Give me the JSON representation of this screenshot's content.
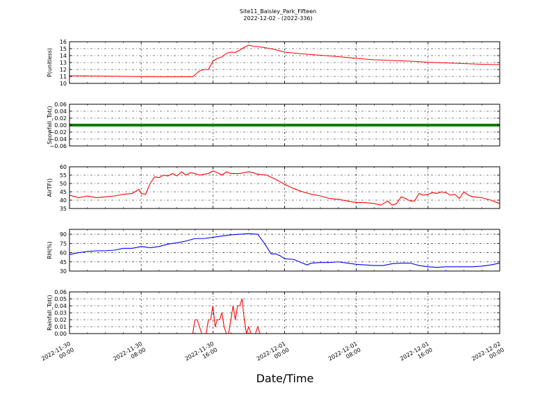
{
  "figure": {
    "title_line1": "Site11_Baisley_Park_Fifteen",
    "title_line2": "2022-12-02 - (2022-336)",
    "xlabel": "Date/Time"
  },
  "chart_data": {
    "type": "line",
    "x_range": [
      "2022-11-30 00:00",
      "2022-12-02 00:00"
    ],
    "x_ticks": [
      {
        "time": "2022-11-30 00:00",
        "line1": "2022-11-30",
        "line2": "00:00"
      },
      {
        "time": "2022-11-30 08:00",
        "line1": "2022-11-30",
        "line2": "08:00"
      },
      {
        "time": "2022-11-30 16:00",
        "line1": "2022-11-30",
        "line2": "16:00"
      },
      {
        "time": "2022-12-01 00:00",
        "line1": "2022-12-01",
        "line2": "00:00"
      },
      {
        "time": "2022-12-01 08:00",
        "line1": "2022-12-01",
        "line2": "08:00"
      },
      {
        "time": "2022-12-01 16:00",
        "line1": "2022-12-01",
        "line2": "16:00"
      },
      {
        "time": "2022-12-02 00:00",
        "line1": "2022-12-02",
        "line2": "00:00"
      }
    ],
    "grid": true,
    "panels": [
      {
        "id": "pressure",
        "ylabel": "P(unitless)",
        "color": "#ff0000",
        "ylim": [
          10,
          16
        ],
        "yticks": [
          "10",
          "11",
          "12",
          "13",
          "14",
          "15",
          "16"
        ],
        "series": [
          {
            "t": "2022-11-30 00:00",
            "v": 11.1
          },
          {
            "t": "2022-11-30 04:00",
            "v": 11.05
          },
          {
            "t": "2022-11-30 08:00",
            "v": 10.98
          },
          {
            "t": "2022-11-30 12:00",
            "v": 10.95
          },
          {
            "t": "2022-11-30 13:45",
            "v": 10.95
          },
          {
            "t": "2022-11-30 14:30",
            "v": 11.8
          },
          {
            "t": "2022-11-30 15:00",
            "v": 12.0
          },
          {
            "t": "2022-11-30 15:30",
            "v": 12.0
          },
          {
            "t": "2022-11-30 16:00",
            "v": 13.2
          },
          {
            "t": "2022-11-30 16:30",
            "v": 13.6
          },
          {
            "t": "2022-11-30 17:00",
            "v": 13.8
          },
          {
            "t": "2022-11-30 17:30",
            "v": 14.3
          },
          {
            "t": "2022-11-30 18:00",
            "v": 14.5
          },
          {
            "t": "2022-11-30 18:30",
            "v": 14.45
          },
          {
            "t": "2022-11-30 19:00",
            "v": 14.8
          },
          {
            "t": "2022-11-30 19:30",
            "v": 15.2
          },
          {
            "t": "2022-11-30 20:00",
            "v": 15.5
          },
          {
            "t": "2022-11-30 20:30",
            "v": 15.35
          },
          {
            "t": "2022-11-30 21:00",
            "v": 15.3
          },
          {
            "t": "2022-11-30 22:00",
            "v": 15.1
          },
          {
            "t": "2022-11-30 23:00",
            "v": 14.85
          },
          {
            "t": "2022-12-01 00:00",
            "v": 14.5
          },
          {
            "t": "2022-12-01 02:00",
            "v": 14.25
          },
          {
            "t": "2022-12-01 04:00",
            "v": 14.05
          },
          {
            "t": "2022-12-01 06:00",
            "v": 13.85
          },
          {
            "t": "2022-12-01 08:00",
            "v": 13.6
          },
          {
            "t": "2022-12-01 10:00",
            "v": 13.4
          },
          {
            "t": "2022-12-01 12:00",
            "v": 13.3
          },
          {
            "t": "2022-12-01 14:00",
            "v": 13.2
          },
          {
            "t": "2022-12-01 16:00",
            "v": 13.05
          },
          {
            "t": "2022-12-01 18:00",
            "v": 12.95
          },
          {
            "t": "2022-12-01 20:00",
            "v": 12.85
          },
          {
            "t": "2022-12-01 22:00",
            "v": 12.75
          },
          {
            "t": "2022-12-02 00:00",
            "v": 12.7
          }
        ]
      },
      {
        "id": "snowfall",
        "ylabel": "Snowfall_Tot()",
        "color": "#008000",
        "ylim": [
          -0.06,
          0.06
        ],
        "yticks": [
          "−0.06",
          "−0.04",
          "−0.02",
          "0.00",
          "0.02",
          "0.04",
          "0.06"
        ],
        "thick": true,
        "series": [
          {
            "t": "2022-11-30 00:00",
            "v": 0
          },
          {
            "t": "2022-12-02 00:00",
            "v": 0
          }
        ]
      },
      {
        "id": "airtemp",
        "ylabel": "AirTF()",
        "color": "#ff0000",
        "ylim": [
          35,
          60
        ],
        "yticks": [
          "35",
          "40",
          "45",
          "50",
          "55",
          "60"
        ],
        "series": [
          {
            "t": "2022-11-30 00:00",
            "v": 43
          },
          {
            "t": "2022-11-30 01:00",
            "v": 41.5
          },
          {
            "t": "2022-11-30 02:00",
            "v": 42.5
          },
          {
            "t": "2022-11-30 03:00",
            "v": 41.5
          },
          {
            "t": "2022-11-30 04:00",
            "v": 42
          },
          {
            "t": "2022-11-30 05:00",
            "v": 42.5
          },
          {
            "t": "2022-11-30 06:00",
            "v": 43.5
          },
          {
            "t": "2022-11-30 07:00",
            "v": 44
          },
          {
            "t": "2022-11-30 07:45",
            "v": 46.5
          },
          {
            "t": "2022-11-30 08:00",
            "v": 44
          },
          {
            "t": "2022-11-30 08:30",
            "v": 43.5
          },
          {
            "t": "2022-11-30 09:00",
            "v": 50
          },
          {
            "t": "2022-11-30 09:30",
            "v": 54
          },
          {
            "t": "2022-11-30 10:00",
            "v": 53.5
          },
          {
            "t": "2022-11-30 10:30",
            "v": 55
          },
          {
            "t": "2022-11-30 11:00",
            "v": 54.5
          },
          {
            "t": "2022-11-30 11:30",
            "v": 56
          },
          {
            "t": "2022-11-30 12:00",
            "v": 54.5
          },
          {
            "t": "2022-11-30 12:30",
            "v": 57
          },
          {
            "t": "2022-11-30 13:00",
            "v": 55
          },
          {
            "t": "2022-11-30 13:30",
            "v": 56.5
          },
          {
            "t": "2022-11-30 14:00",
            "v": 56
          },
          {
            "t": "2022-11-30 14:30",
            "v": 55
          },
          {
            "t": "2022-11-30 15:00",
            "v": 55.5
          },
          {
            "t": "2022-11-30 15:30",
            "v": 56
          },
          {
            "t": "2022-11-30 16:00",
            "v": 57.5
          },
          {
            "t": "2022-11-30 16:30",
            "v": 56.5
          },
          {
            "t": "2022-11-30 17:00",
            "v": 55
          },
          {
            "t": "2022-11-30 17:30",
            "v": 57
          },
          {
            "t": "2022-11-30 18:00",
            "v": 56
          },
          {
            "t": "2022-11-30 19:00",
            "v": 56
          },
          {
            "t": "2022-11-30 20:00",
            "v": 57
          },
          {
            "t": "2022-11-30 20:30",
            "v": 56.5
          },
          {
            "t": "2022-11-30 21:00",
            "v": 55.5
          },
          {
            "t": "2022-11-30 22:00",
            "v": 55
          },
          {
            "t": "2022-11-30 23:00",
            "v": 52.5
          },
          {
            "t": "2022-12-01 00:00",
            "v": 49.5
          },
          {
            "t": "2022-12-01 01:00",
            "v": 47
          },
          {
            "t": "2022-12-01 02:00",
            "v": 45
          },
          {
            "t": "2022-12-01 03:00",
            "v": 43.5
          },
          {
            "t": "2022-12-01 04:00",
            "v": 42.5
          },
          {
            "t": "2022-12-01 05:00",
            "v": 41
          },
          {
            "t": "2022-12-01 06:00",
            "v": 40.5
          },
          {
            "t": "2022-12-01 07:00",
            "v": 39.5
          },
          {
            "t": "2022-12-01 08:00",
            "v": 38.5
          },
          {
            "t": "2022-12-01 09:00",
            "v": 38.5
          },
          {
            "t": "2022-12-01 10:00",
            "v": 38
          },
          {
            "t": "2022-12-01 10:45",
            "v": 37
          },
          {
            "t": "2022-12-01 11:30",
            "v": 39.5
          },
          {
            "t": "2022-12-01 12:00",
            "v": 37
          },
          {
            "t": "2022-12-01 12:30",
            "v": 38
          },
          {
            "t": "2022-12-01 13:00",
            "v": 42
          },
          {
            "t": "2022-12-01 13:30",
            "v": 41
          },
          {
            "t": "2022-12-01 14:00",
            "v": 39.5
          },
          {
            "t": "2022-12-01 14:30",
            "v": 39.5
          },
          {
            "t": "2022-12-01 15:00",
            "v": 44
          },
          {
            "t": "2022-12-01 15:30",
            "v": 43
          },
          {
            "t": "2022-12-01 16:00",
            "v": 43.5
          },
          {
            "t": "2022-12-01 16:30",
            "v": 44.5
          },
          {
            "t": "2022-12-01 17:00",
            "v": 44
          },
          {
            "t": "2022-12-01 17:30",
            "v": 45
          },
          {
            "t": "2022-12-01 18:00",
            "v": 44.5
          },
          {
            "t": "2022-12-01 18:30",
            "v": 43
          },
          {
            "t": "2022-12-01 19:00",
            "v": 43.5
          },
          {
            "t": "2022-12-01 19:30",
            "v": 41
          },
          {
            "t": "2022-12-01 20:00",
            "v": 45
          },
          {
            "t": "2022-12-01 20:30",
            "v": 43
          },
          {
            "t": "2022-12-01 21:00",
            "v": 42
          },
          {
            "t": "2022-12-01 22:00",
            "v": 41.5
          },
          {
            "t": "2022-12-01 23:00",
            "v": 40
          },
          {
            "t": "2022-12-02 00:00",
            "v": 38
          }
        ]
      },
      {
        "id": "rh",
        "ylabel": "RH(%)",
        "color": "#0000ff",
        "ylim": [
          30,
          98
        ],
        "yticks": [
          "30",
          "45",
          "60",
          "75",
          "90"
        ],
        "ytick_values": [
          30,
          45,
          60,
          75,
          90
        ],
        "series": [
          {
            "t": "2022-11-30 00:00",
            "v": 57
          },
          {
            "t": "2022-11-30 01:00",
            "v": 60
          },
          {
            "t": "2022-11-30 02:00",
            "v": 62
          },
          {
            "t": "2022-11-30 03:00",
            "v": 63
          },
          {
            "t": "2022-11-30 04:00",
            "v": 63
          },
          {
            "t": "2022-11-30 05:00",
            "v": 64
          },
          {
            "t": "2022-11-30 06:00",
            "v": 67
          },
          {
            "t": "2022-11-30 07:00",
            "v": 67
          },
          {
            "t": "2022-11-30 08:00",
            "v": 70
          },
          {
            "t": "2022-11-30 09:00",
            "v": 68
          },
          {
            "t": "2022-11-30 10:00",
            "v": 70
          },
          {
            "t": "2022-11-30 11:00",
            "v": 74
          },
          {
            "t": "2022-11-30 12:00",
            "v": 76
          },
          {
            "t": "2022-11-30 13:00",
            "v": 79
          },
          {
            "t": "2022-11-30 14:00",
            "v": 83
          },
          {
            "t": "2022-11-30 15:00",
            "v": 83
          },
          {
            "t": "2022-11-30 16:00",
            "v": 85
          },
          {
            "t": "2022-11-30 17:00",
            "v": 87
          },
          {
            "t": "2022-11-30 18:00",
            "v": 89
          },
          {
            "t": "2022-11-30 19:00",
            "v": 90
          },
          {
            "t": "2022-11-30 20:00",
            "v": 91
          },
          {
            "t": "2022-11-30 21:00",
            "v": 90
          },
          {
            "t": "2022-11-30 21:45",
            "v": 75
          },
          {
            "t": "2022-11-30 22:30",
            "v": 58
          },
          {
            "t": "2022-11-30 23:00",
            "v": 58
          },
          {
            "t": "2022-11-30 23:30",
            "v": 55
          },
          {
            "t": "2022-12-01 00:00",
            "v": 50
          },
          {
            "t": "2022-12-01 01:00",
            "v": 49
          },
          {
            "t": "2022-12-01 02:00",
            "v": 43
          },
          {
            "t": "2022-12-01 02:30",
            "v": 40
          },
          {
            "t": "2022-12-01 03:00",
            "v": 43
          },
          {
            "t": "2022-12-01 04:00",
            "v": 44
          },
          {
            "t": "2022-12-01 05:00",
            "v": 44
          },
          {
            "t": "2022-12-01 06:00",
            "v": 45
          },
          {
            "t": "2022-12-01 07:00",
            "v": 43
          },
          {
            "t": "2022-12-01 08:00",
            "v": 41
          },
          {
            "t": "2022-12-01 09:00",
            "v": 40
          },
          {
            "t": "2022-12-01 10:00",
            "v": 39
          },
          {
            "t": "2022-12-01 11:00",
            "v": 39
          },
          {
            "t": "2022-12-01 12:00",
            "v": 42
          },
          {
            "t": "2022-12-01 13:00",
            "v": 43
          },
          {
            "t": "2022-12-01 14:00",
            "v": 43
          },
          {
            "t": "2022-12-01 15:00",
            "v": 39
          },
          {
            "t": "2022-12-01 16:00",
            "v": 37
          },
          {
            "t": "2022-12-01 17:00",
            "v": 36
          },
          {
            "t": "2022-12-01 18:00",
            "v": 37
          },
          {
            "t": "2022-12-01 19:00",
            "v": 37
          },
          {
            "t": "2022-12-01 20:00",
            "v": 37
          },
          {
            "t": "2022-12-01 21:00",
            "v": 37
          },
          {
            "t": "2022-12-01 22:00",
            "v": 38
          },
          {
            "t": "2022-12-01 23:00",
            "v": 40
          },
          {
            "t": "2022-12-02 00:00",
            "v": 43
          }
        ]
      },
      {
        "id": "rainfall",
        "ylabel": "Rainfall_Tot()",
        "color": "#ff0000",
        "ylim": [
          0,
          0.06
        ],
        "yticks": [
          "0.00",
          "0.01",
          "0.02",
          "0.03",
          "0.04",
          "0.05",
          "0.06"
        ],
        "series": [
          {
            "t": "2022-11-30 00:00",
            "v": 0
          },
          {
            "t": "2022-11-30 13:45",
            "v": 0
          },
          {
            "t": "2022-11-30 14:00",
            "v": 0.02
          },
          {
            "t": "2022-11-30 14:15",
            "v": 0.02
          },
          {
            "t": "2022-11-30 14:45",
            "v": 0
          },
          {
            "t": "2022-11-30 15:15",
            "v": 0
          },
          {
            "t": "2022-11-30 15:30",
            "v": 0.02
          },
          {
            "t": "2022-11-30 15:45",
            "v": 0.02
          },
          {
            "t": "2022-11-30 16:00",
            "v": 0.04
          },
          {
            "t": "2022-11-30 16:15",
            "v": 0.01
          },
          {
            "t": "2022-11-30 16:30",
            "v": 0.02
          },
          {
            "t": "2022-11-30 16:45",
            "v": 0.02
          },
          {
            "t": "2022-11-30 17:00",
            "v": 0.03
          },
          {
            "t": "2022-11-30 17:15",
            "v": 0.01
          },
          {
            "t": "2022-11-30 17:30",
            "v": 0
          },
          {
            "t": "2022-11-30 17:45",
            "v": 0
          },
          {
            "t": "2022-11-30 18:00",
            "v": 0.02
          },
          {
            "t": "2022-11-30 18:15",
            "v": 0.04
          },
          {
            "t": "2022-11-30 18:30",
            "v": 0.02
          },
          {
            "t": "2022-11-30 18:45",
            "v": 0.04
          },
          {
            "t": "2022-11-30 19:00",
            "v": 0.04
          },
          {
            "t": "2022-11-30 19:15",
            "v": 0.05
          },
          {
            "t": "2022-11-30 19:30",
            "v": 0.02
          },
          {
            "t": "2022-11-30 19:45",
            "v": 0
          },
          {
            "t": "2022-11-30 20:00",
            "v": 0.01
          },
          {
            "t": "2022-11-30 20:15",
            "v": 0
          },
          {
            "t": "2022-11-30 20:45",
            "v": 0
          },
          {
            "t": "2022-11-30 21:00",
            "v": 0.01
          },
          {
            "t": "2022-11-30 21:15",
            "v": 0
          },
          {
            "t": "2022-12-02 00:00",
            "v": 0
          }
        ]
      }
    ]
  }
}
